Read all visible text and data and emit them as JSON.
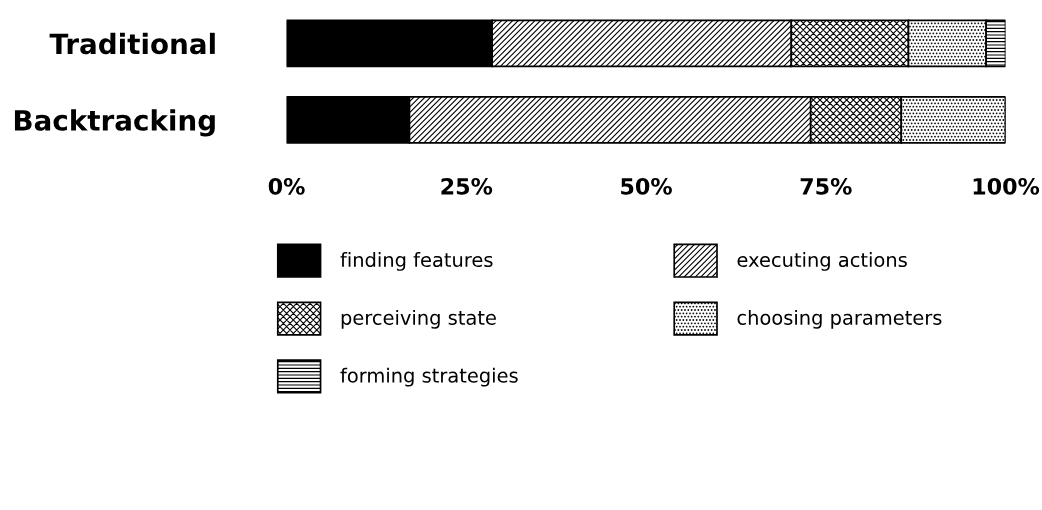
{
  "chart_data": {
    "type": "bar",
    "orientation": "horizontal",
    "stacked": true,
    "categories": [
      "Traditional",
      "Backtracking"
    ],
    "series": [
      {
        "name": "finding features",
        "color": "#000000",
        "values": [
          28.6,
          17.1
        ]
      },
      {
        "name": "executing actions",
        "color": "#000000",
        "values": [
          41.6,
          55.8
        ]
      },
      {
        "name": "perceiving state",
        "color": "#000000",
        "values": [
          16.3,
          12.6
        ]
      },
      {
        "name": "choosing parameters",
        "color": "#000000",
        "values": [
          10.8,
          14.5
        ]
      },
      {
        "name": "forming strategies",
        "color": "#000000",
        "values": [
          2.7,
          0
        ]
      }
    ],
    "xlim": [
      0,
      100
    ],
    "xticks": [
      {
        "value": 0,
        "label": "0%"
      },
      {
        "value": 25,
        "label": "25%"
      },
      {
        "value": 50,
        "label": "50%"
      },
      {
        "value": 75,
        "label": "75%"
      },
      {
        "value": 100,
        "label": "100%"
      }
    ],
    "grid": false,
    "legend": "bottom"
  }
}
